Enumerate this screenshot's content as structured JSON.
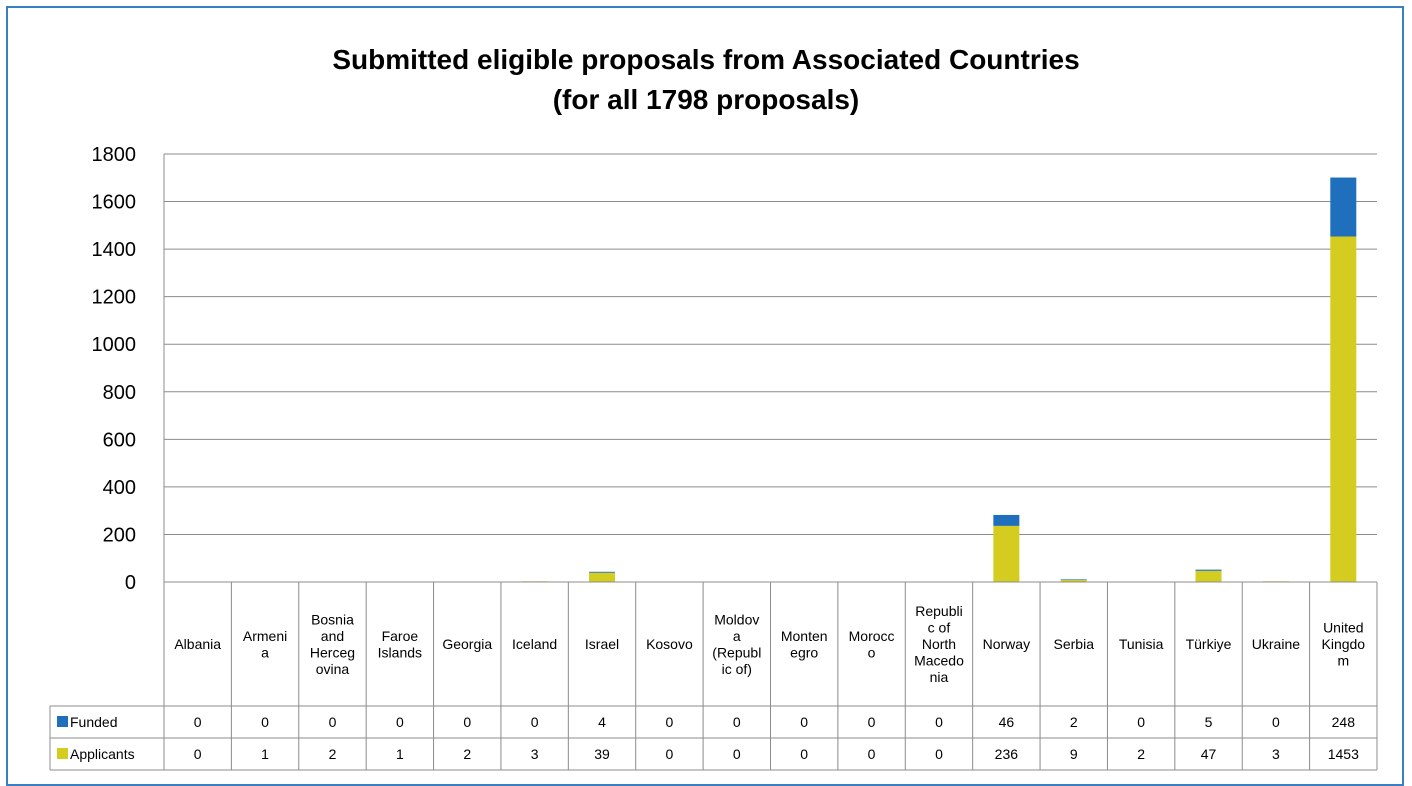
{
  "chart_data": {
    "type": "bar",
    "stacked": true,
    "title": "Submitted eligible proposals from Associated Countries",
    "subtitle": "(for all 1798 proposals)",
    "ylim": [
      0,
      1800
    ],
    "yticks": [
      0,
      200,
      400,
      600,
      800,
      1000,
      1200,
      1400,
      1600,
      1800
    ],
    "grid": true,
    "legend": "data-table",
    "categories": [
      "Albania",
      "Armeni\na",
      "Bosnia\nand\nHerceg\novina",
      "Faroe\nIslands",
      "Georgia",
      "Iceland",
      "Israel",
      "Kosovo",
      "Moldov\na\n(Republ\nic of)",
      "Monten\negro",
      "Morocc\no",
      "Republi\nc of\nNorth\nMacedo\nnia",
      "Norway",
      "Serbia",
      "Tunisia",
      "Türkiye",
      "Ukraine",
      "United\nKingdo\nm"
    ],
    "series": [
      {
        "name": "Applicants",
        "color": "#d4cc1e",
        "values": [
          0,
          1,
          2,
          1,
          2,
          3,
          39,
          0,
          0,
          0,
          0,
          0,
          236,
          9,
          2,
          47,
          3,
          1453
        ]
      },
      {
        "name": "Funded",
        "color": "#1f6fbd",
        "values": [
          0,
          0,
          0,
          0,
          0,
          0,
          4,
          0,
          0,
          0,
          0,
          0,
          46,
          2,
          0,
          5,
          0,
          248
        ]
      }
    ]
  }
}
